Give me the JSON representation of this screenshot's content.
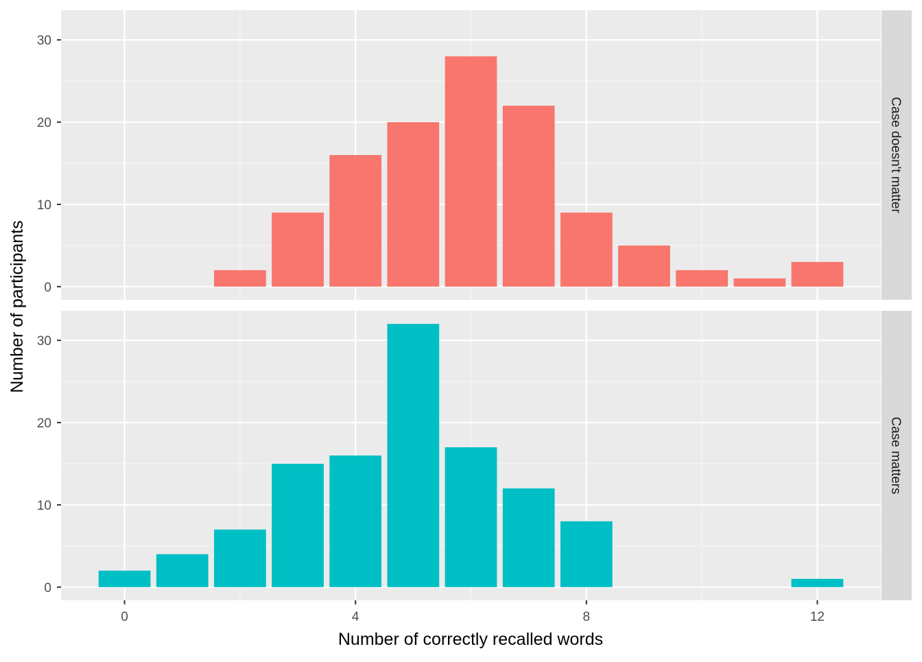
{
  "chart_data": {
    "type": "bar",
    "xlabel": "Number of correctly recalled words",
    "ylabel": "Number of participants",
    "x_ticks": [
      0,
      4,
      8,
      12
    ],
    "xlim": [
      -1.1,
      13.1
    ],
    "ylim": [
      -1.6,
      33.6
    ],
    "y_ticks": [
      0,
      10,
      20,
      30
    ],
    "grid": true,
    "legend": "none",
    "panels": [
      {
        "name": "Case doesn't matter",
        "color": "#F8766D",
        "x": [
          0,
          1,
          2,
          3,
          4,
          5,
          6,
          7,
          8,
          9,
          10,
          11,
          12
        ],
        "values": [
          0,
          0,
          2,
          9,
          16,
          20,
          28,
          22,
          9,
          5,
          2,
          1,
          3
        ]
      },
      {
        "name": "Case matters",
        "color": "#00BFC4",
        "x": [
          0,
          1,
          2,
          3,
          4,
          5,
          6,
          7,
          8,
          9,
          10,
          11,
          12
        ],
        "values": [
          2,
          4,
          7,
          15,
          16,
          32,
          17,
          12,
          8,
          0,
          0,
          0,
          1
        ]
      }
    ]
  }
}
